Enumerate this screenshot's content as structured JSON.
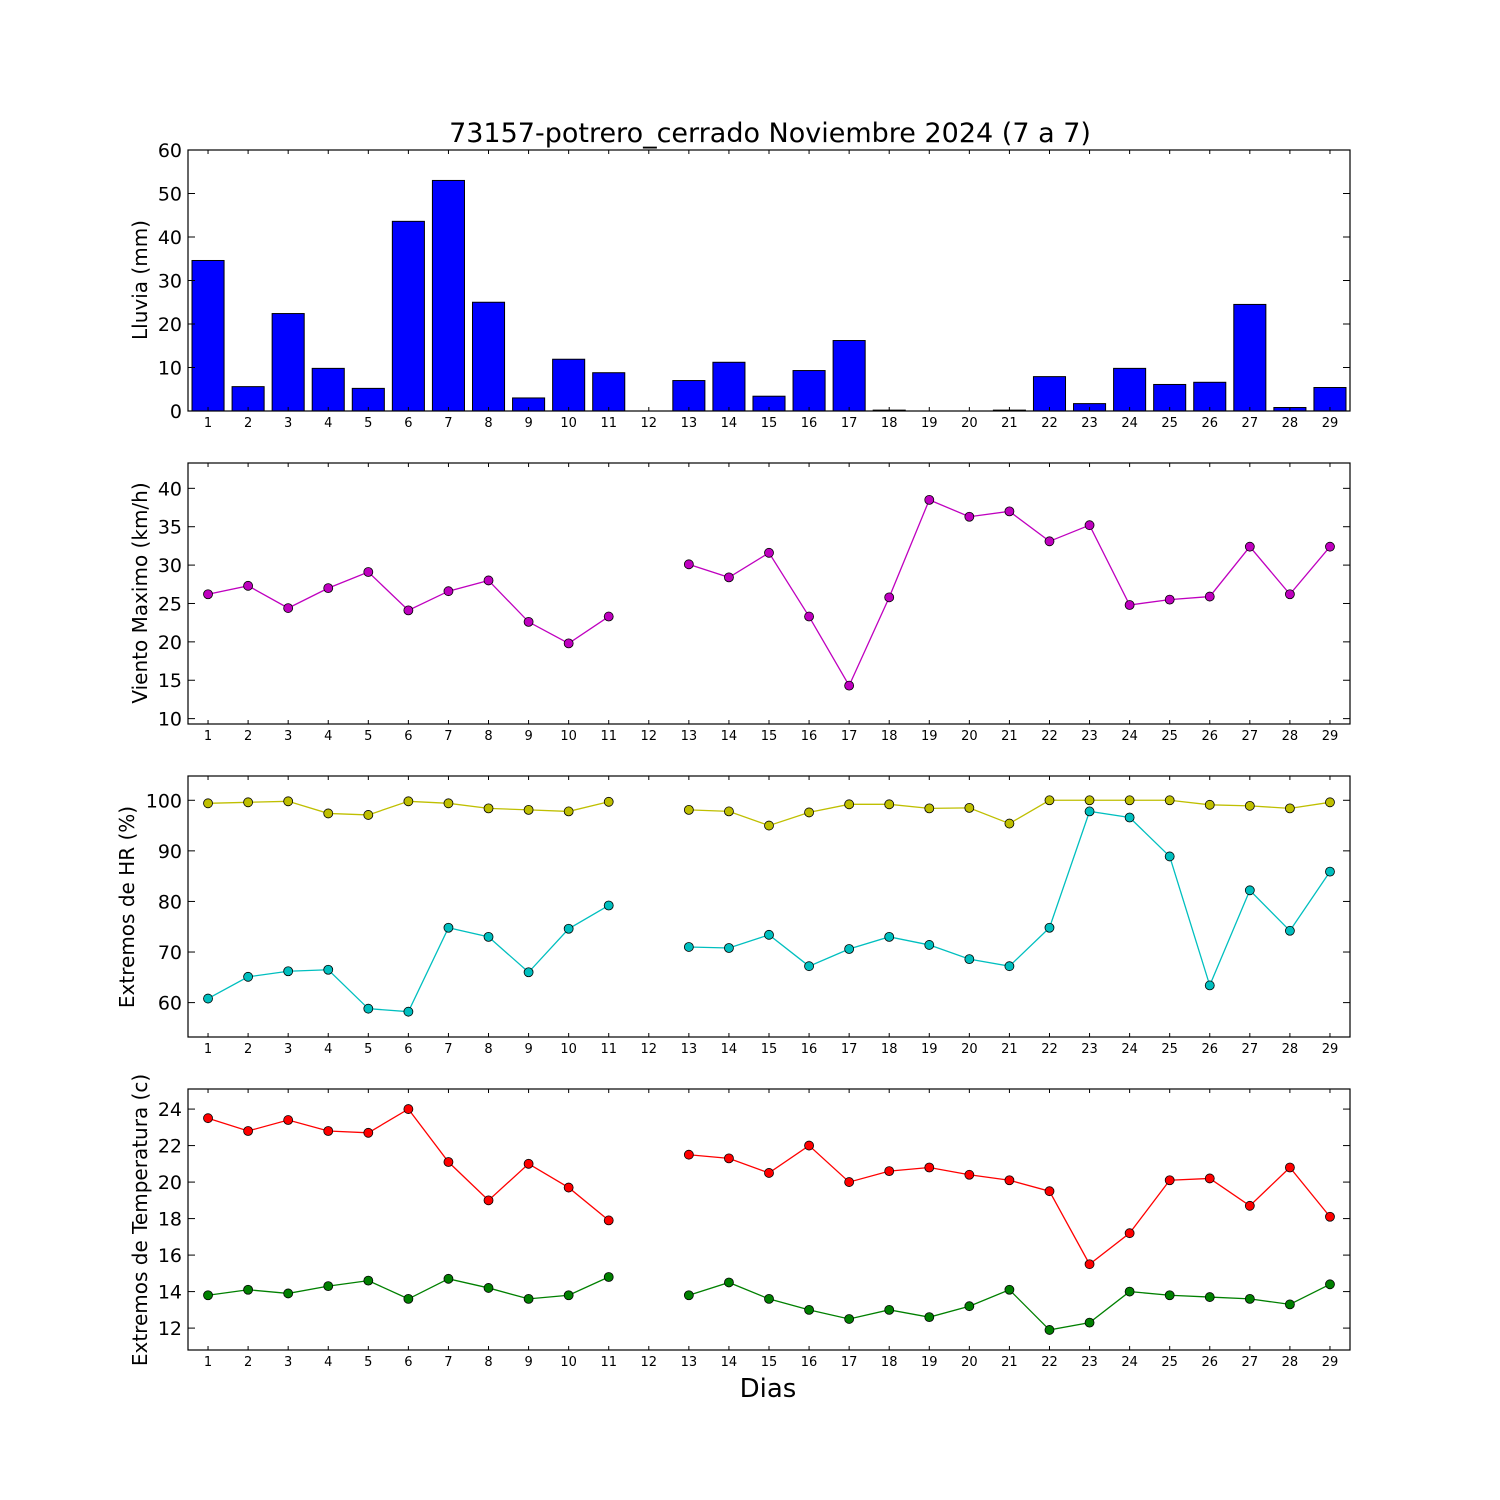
{
  "chart_data": [
    {
      "type": "bar",
      "title": "73157-potrero_cerrado Noviembre 2024  (7 a 7)",
      "ylabel": "Lluvia (mm)",
      "xlabel": "",
      "categories": [
        "1",
        "2",
        "3",
        "4",
        "5",
        "6",
        "7",
        "8",
        "9",
        "10",
        "11",
        "12",
        "13",
        "14",
        "15",
        "16",
        "17",
        "18",
        "19",
        "20",
        "21",
        "22",
        "23",
        "24",
        "25",
        "26",
        "27",
        "28",
        "29"
      ],
      "values": [
        34.6,
        5.6,
        22.4,
        9.8,
        5.2,
        43.6,
        53.0,
        25.0,
        3.0,
        11.9,
        8.8,
        0,
        7.0,
        11.2,
        3.4,
        9.3,
        16.2,
        0.2,
        0,
        0,
        0.2,
        7.9,
        1.7,
        9.8,
        6.1,
        6.6,
        24.5,
        0.8,
        5.4
      ],
      "ylim": [
        0,
        60
      ],
      "yticks": [
        0,
        10,
        20,
        30,
        40,
        50,
        60
      ],
      "color": "#0000ff"
    },
    {
      "type": "line",
      "title": "",
      "ylabel": "Viento Maximo (km/h)",
      "xlabel": "",
      "x": [
        1,
        2,
        3,
        4,
        5,
        6,
        7,
        8,
        9,
        10,
        11,
        12,
        13,
        14,
        15,
        16,
        17,
        18,
        19,
        20,
        21,
        22,
        23,
        24,
        25,
        26,
        27,
        28,
        29
      ],
      "series": [
        {
          "color": "#bf00bf",
          "values": [
            26.2,
            27.3,
            24.4,
            27.0,
            29.1,
            24.1,
            26.6,
            28.0,
            22.6,
            19.8,
            23.3,
            null,
            30.1,
            28.4,
            31.6,
            23.3,
            14.3,
            25.8,
            38.5,
            36.3,
            37.0,
            33.1,
            35.2,
            24.8,
            25.5,
            25.9,
            32.4,
            26.2,
            32.4
          ]
        }
      ],
      "ylim": [
        9.3,
        43.3
      ],
      "yticks": [
        10,
        15,
        20,
        25,
        30,
        35,
        40
      ]
    },
    {
      "type": "line",
      "title": "",
      "ylabel": "Extremos de HR (%)",
      "xlabel": "",
      "x": [
        1,
        2,
        3,
        4,
        5,
        6,
        7,
        8,
        9,
        10,
        11,
        12,
        13,
        14,
        15,
        16,
        17,
        18,
        19,
        20,
        21,
        22,
        23,
        24,
        25,
        26,
        27,
        28,
        29
      ],
      "series": [
        {
          "color": "#bfbf00",
          "values": [
            99.4,
            99.6,
            99.8,
            97.4,
            97.1,
            99.8,
            99.4,
            98.4,
            98.1,
            97.8,
            99.7,
            null,
            98.1,
            97.8,
            95.0,
            97.6,
            99.2,
            99.2,
            98.4,
            98.5,
            95.4,
            100,
            100,
            100,
            100,
            99.1,
            98.9,
            98.4,
            99.6
          ]
        },
        {
          "color": "#00bfbf",
          "values": [
            60.8,
            65.1,
            66.2,
            66.5,
            58.8,
            58.2,
            74.8,
            73.0,
            66.0,
            74.6,
            79.2,
            null,
            71.0,
            70.8,
            73.4,
            67.2,
            70.6,
            73.0,
            71.4,
            68.6,
            67.2,
            74.8,
            97.8,
            96.6,
            88.9,
            63.4,
            82.2,
            74.2,
            85.9
          ]
        }
      ],
      "ylim": [
        53.2,
        104.8
      ],
      "yticks": [
        60,
        70,
        80,
        90,
        100
      ]
    },
    {
      "type": "line",
      "title": "",
      "ylabel": "Extremos de Temperatura (c)",
      "xlabel": "Dias",
      "x": [
        1,
        2,
        3,
        4,
        5,
        6,
        7,
        8,
        9,
        10,
        11,
        12,
        13,
        14,
        15,
        16,
        17,
        18,
        19,
        20,
        21,
        22,
        23,
        24,
        25,
        26,
        27,
        28,
        29
      ],
      "series": [
        {
          "color": "#ff0000",
          "values": [
            23.5,
            22.8,
            23.4,
            22.8,
            22.7,
            24.0,
            21.1,
            19.0,
            21.0,
            19.7,
            17.9,
            null,
            21.5,
            21.3,
            20.5,
            22.0,
            20.0,
            20.6,
            20.8,
            20.4,
            20.1,
            19.5,
            15.5,
            17.2,
            20.1,
            20.2,
            18.7,
            20.8,
            18.1
          ]
        },
        {
          "color": "#008000",
          "values": [
            13.8,
            14.1,
            13.9,
            14.3,
            14.6,
            13.6,
            14.7,
            14.2,
            13.6,
            13.8,
            14.8,
            null,
            13.8,
            14.5,
            13.6,
            13.0,
            12.5,
            13.0,
            12.6,
            13.2,
            14.1,
            11.9,
            12.3,
            14.0,
            13.8,
            13.7,
            13.6,
            13.3,
            14.4
          ]
        }
      ],
      "ylim": [
        10.8,
        25.1
      ],
      "yticks": [
        12,
        14,
        16,
        18,
        20,
        22,
        24
      ]
    }
  ]
}
